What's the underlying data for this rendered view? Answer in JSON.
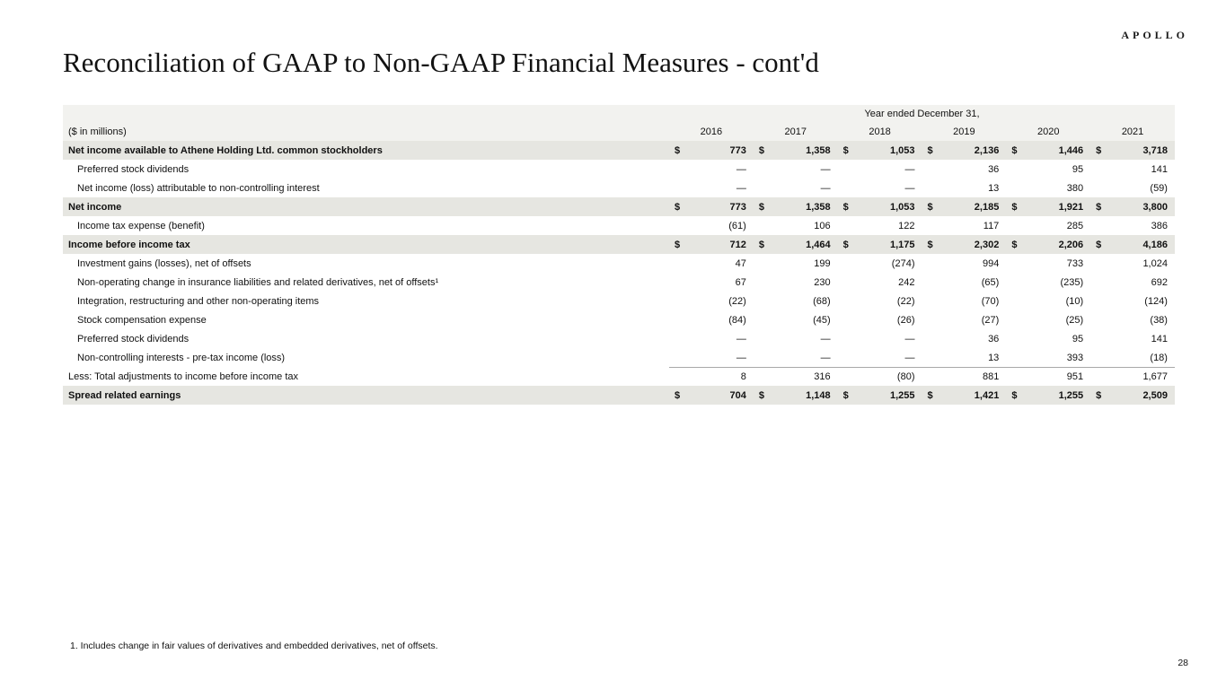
{
  "brand": {
    "logo": "APOLLO"
  },
  "page": {
    "title": "Reconciliation of GAAP to Non-GAAP Financial Measures - cont'd",
    "number": "28",
    "footnote": "1. Includes change in fair values of derivatives and embedded derivatives, net of offsets."
  },
  "table": {
    "header_span": "Year ended December 31,",
    "unit_label": "($ in millions)",
    "years": [
      "2016",
      "2017",
      "2018",
      "2019",
      "2020",
      "2021"
    ],
    "rows": [
      {
        "label": "Net income available to Athene Holding Ltd. common stockholders",
        "bold": true,
        "dollar": true,
        "indent": false,
        "values": [
          "773",
          "1,358",
          "1,053",
          "2,136",
          "1,446",
          "3,718"
        ]
      },
      {
        "label": "Preferred stock dividends",
        "bold": false,
        "dollar": false,
        "indent": true,
        "values": [
          "—",
          "—",
          "—",
          "36",
          "95",
          "141"
        ]
      },
      {
        "label": "Net income (loss) attributable to non-controlling interest",
        "bold": false,
        "dollar": false,
        "indent": true,
        "values": [
          "—",
          "—",
          "—",
          "13",
          "380",
          "(59)"
        ]
      },
      {
        "label": "Net income",
        "bold": true,
        "dollar": true,
        "indent": false,
        "values": [
          "773",
          "1,358",
          "1,053",
          "2,185",
          "1,921",
          "3,800"
        ]
      },
      {
        "label": "Income tax expense (benefit)",
        "bold": false,
        "dollar": false,
        "indent": true,
        "values": [
          "(61)",
          "106",
          "122",
          "117",
          "285",
          "386"
        ]
      },
      {
        "label": "Income before income tax",
        "bold": true,
        "dollar": true,
        "indent": false,
        "values": [
          "712",
          "1,464",
          "1,175",
          "2,302",
          "2,206",
          "4,186"
        ]
      },
      {
        "label": "Investment gains (losses), net of offsets",
        "bold": false,
        "dollar": false,
        "indent": true,
        "values": [
          "47",
          "199",
          "(274)",
          "994",
          "733",
          "1,024"
        ]
      },
      {
        "label": "Non-operating change in insurance liabilities and related derivatives, net of offsets¹",
        "bold": false,
        "dollar": false,
        "indent": true,
        "values": [
          "67",
          "230",
          "242",
          "(65)",
          "(235)",
          "692"
        ]
      },
      {
        "label": "Integration, restructuring and other non-operating items",
        "bold": false,
        "dollar": false,
        "indent": true,
        "values": [
          "(22)",
          "(68)",
          "(22)",
          "(70)",
          "(10)",
          "(124)"
        ]
      },
      {
        "label": "Stock compensation expense",
        "bold": false,
        "dollar": false,
        "indent": true,
        "values": [
          "(84)",
          "(45)",
          "(26)",
          "(27)",
          "(25)",
          "(38)"
        ]
      },
      {
        "label": "Preferred stock dividends",
        "bold": false,
        "dollar": false,
        "indent": true,
        "values": [
          "—",
          "—",
          "—",
          "36",
          "95",
          "141"
        ]
      },
      {
        "label": "Non-controlling interests - pre-tax income (loss)",
        "bold": false,
        "dollar": false,
        "indent": true,
        "values": [
          "—",
          "—",
          "—",
          "13",
          "393",
          "(18)"
        ]
      },
      {
        "label": "Less: Total adjustments to income before income tax",
        "bold": false,
        "dollar": false,
        "indent": false,
        "rule_above": true,
        "values": [
          "8",
          "316",
          "(80)",
          "881",
          "951",
          "1,677"
        ]
      },
      {
        "label": "Spread related earnings",
        "bold": true,
        "dollar": true,
        "indent": false,
        "values": [
          "704",
          "1,148",
          "1,255",
          "1,421",
          "1,255",
          "2,509"
        ]
      }
    ]
  }
}
